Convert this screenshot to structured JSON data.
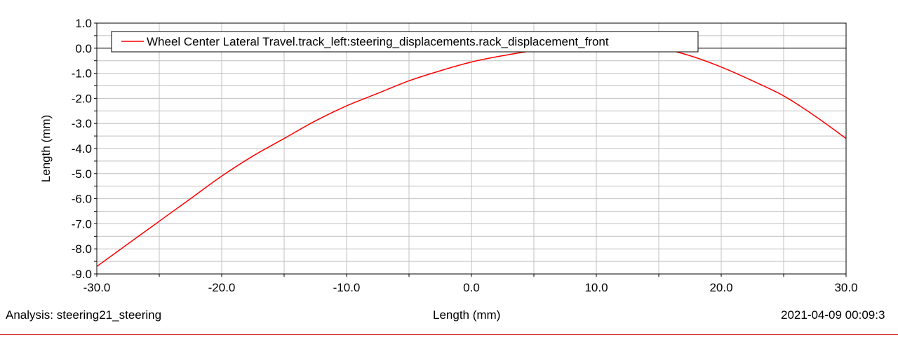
{
  "chart_data": {
    "type": "line",
    "title": "",
    "xlabel": "",
    "ylabel": "Length (mm)",
    "xlim": [
      -30.0,
      30.0
    ],
    "ylim": [
      -9.0,
      1.0
    ],
    "x_ticks": [
      -30.0,
      -20.0,
      -10.0,
      0.0,
      10.0,
      20.0,
      30.0
    ],
    "x_tick_labels": [
      "-30.0",
      "-20.0",
      "-10.0",
      "0.0",
      "10.0",
      "20.0",
      "30.0"
    ],
    "y_ticks": [
      1.0,
      0.0,
      -1.0,
      -2.0,
      -3.0,
      -4.0,
      -5.0,
      -6.0,
      -7.0,
      -8.0,
      -9.0
    ],
    "y_tick_labels": [
      "1.0",
      "0.0",
      "-1.0",
      "-2.0",
      "-3.0",
      "-4.0",
      "-5.0",
      "-6.0",
      "-7.0",
      "-8.0",
      "-9.0"
    ],
    "grid": true,
    "legend_position": "top-left",
    "series": [
      {
        "name": "Wheel Center Lateral Travel.track_left:steering_displacements.rack_displacement_front",
        "color": "#ff0000",
        "x": [
          -30.0,
          -27.5,
          -25.0,
          -22.5,
          -20.0,
          -17.5,
          -15.0,
          -12.5,
          -10.0,
          -7.5,
          -5.0,
          -2.5,
          0.0,
          2.5,
          5.0,
          7.5,
          10.0,
          12.5,
          15.0,
          17.5,
          20.0,
          22.5,
          25.0,
          27.5,
          30.0
        ],
        "y": [
          -8.7,
          -7.8,
          -6.9,
          -6.0,
          -5.1,
          -4.3,
          -3.6,
          -2.9,
          -2.3,
          -1.8,
          -1.3,
          -0.9,
          -0.55,
          -0.3,
          -0.1,
          0.0,
          0.0,
          0.0,
          0.0,
          -0.3,
          -0.75,
          -1.3,
          -1.9,
          -2.7,
          -3.6
        ]
      }
    ]
  },
  "footer": {
    "analysis": "Analysis:  steering21_steering",
    "xlabel": "Length (mm)",
    "date": "2021-04-09 00:09:3"
  }
}
